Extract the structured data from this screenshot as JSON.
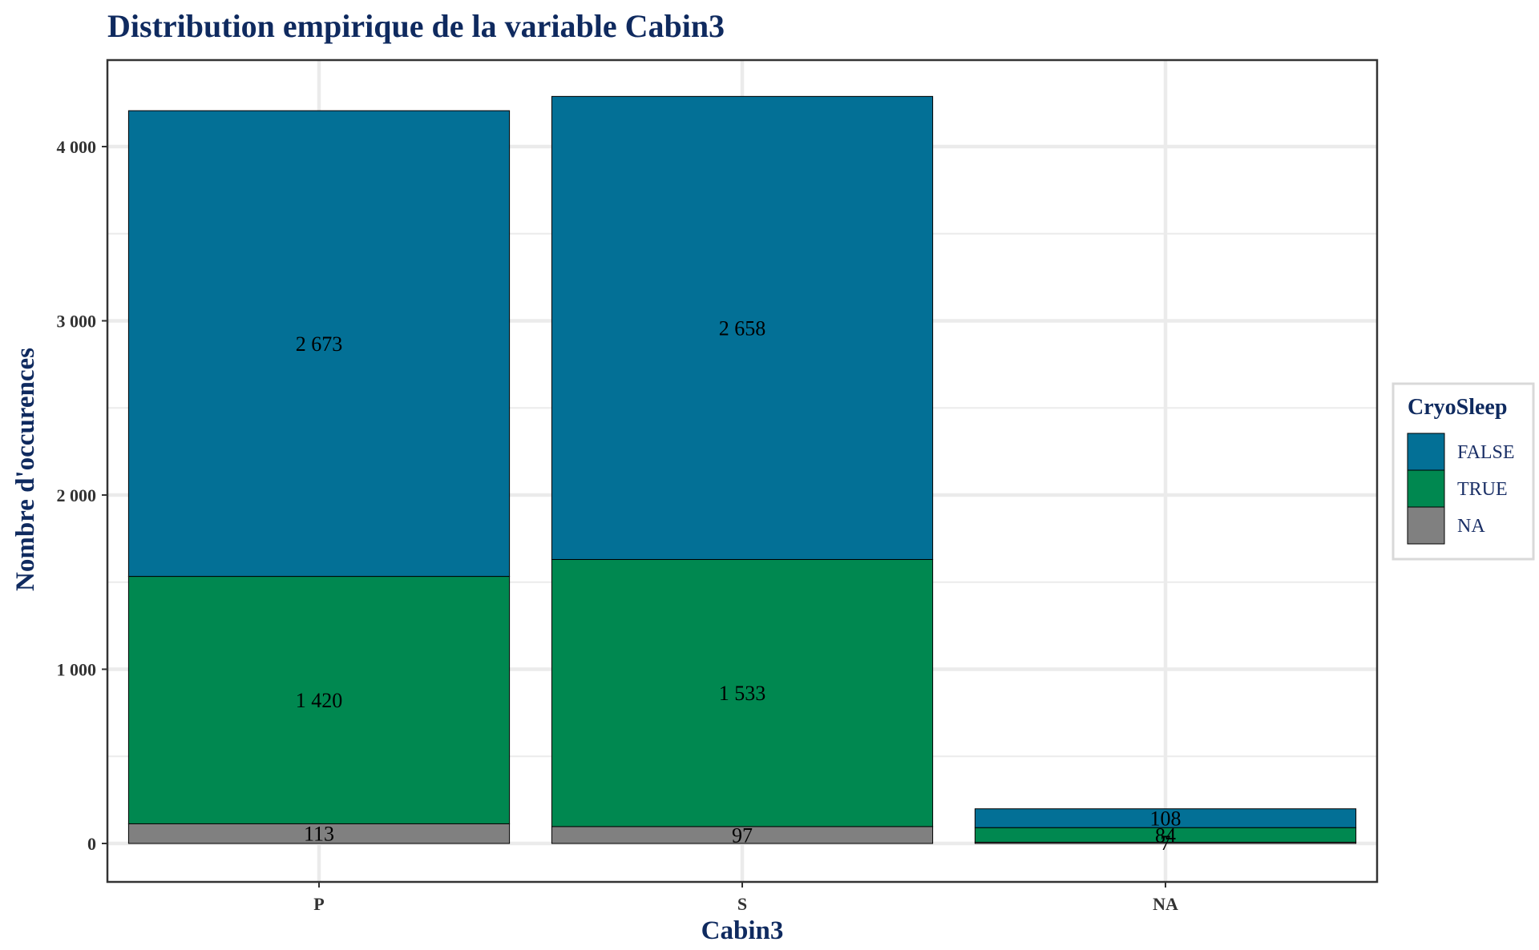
{
  "chart_data": {
    "type": "bar",
    "stacked": true,
    "title": "Distribution empirique de la variable Cabin3",
    "xlabel": "Cabin3",
    "ylabel": "Nombre d'occurences",
    "categories": [
      "P",
      "S",
      "NA"
    ],
    "series": [
      {
        "name": "NA",
        "color": "#808080",
        "values": [
          113,
          97,
          7
        ],
        "labels": [
          "113",
          "97",
          "7"
        ]
      },
      {
        "name": "TRUE",
        "color": "#008850",
        "values": [
          1420,
          1533,
          84
        ],
        "labels": [
          "1 420",
          "1 533",
          "84"
        ]
      },
      {
        "name": "FALSE",
        "color": "#037096",
        "values": [
          2673,
          2658,
          108
        ],
        "labels": [
          "2 673",
          "2 658",
          "108"
        ]
      }
    ],
    "ylim": [
      -200,
      4490
    ],
    "yticks": [
      0,
      1000,
      2000,
      3000,
      4000
    ],
    "ytick_labels": [
      "0",
      "1 000",
      "2 000",
      "3 000",
      "4 000"
    ],
    "grid": true,
    "legend": {
      "title": "CryoSleep",
      "position": "right",
      "entries": [
        "FALSE",
        "TRUE",
        "NA"
      ]
    }
  }
}
